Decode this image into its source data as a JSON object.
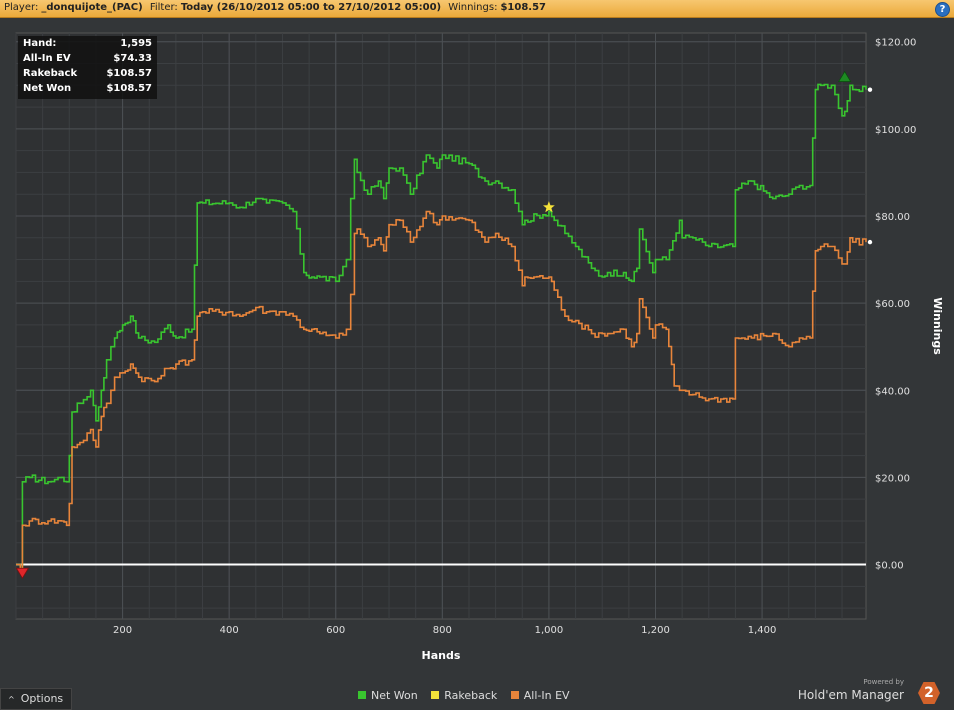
{
  "header": {
    "player_label": "Player:",
    "player_value": "_donquijote_(PAC)",
    "filter_label": "Filter:",
    "filter_value": "Today (26/10/2012 05:00 to 27/10/2012 05:00)",
    "winnings_label": "Winnings:",
    "winnings_value": "$108.57",
    "help_icon": "question-icon",
    "help_glyph": "?"
  },
  "stats_box": [
    {
      "label": "Hand:",
      "value": "1,595"
    },
    {
      "label": "All-In EV",
      "value": "$74.33"
    },
    {
      "label": "Rakeback",
      "value": "$108.57"
    },
    {
      "label": "Net Won",
      "value": "$108.57"
    }
  ],
  "options": {
    "label": "Options",
    "icon": "caret-up-icon",
    "glyph": "^"
  },
  "legend": [
    {
      "label": "Net Won",
      "color": "#39c52f"
    },
    {
      "label": "Rakeback",
      "color": "#f2e33a"
    },
    {
      "label": "All-In EV",
      "color": "#e8853b"
    }
  ],
  "branding": {
    "powered_by": "Powered by",
    "name": "Hold'em Manager",
    "logo_text": "2"
  },
  "chart_data": {
    "type": "line",
    "xlabel": "Hands",
    "ylabel": "Winnings",
    "xlim": [
      0,
      1595
    ],
    "ylim": [
      -12.5,
      122
    ],
    "x_ticks": [
      200,
      400,
      600,
      800,
      1000,
      1200,
      1400
    ],
    "x_tick_labels": [
      "200",
      "400",
      "600",
      "800",
      "1,000",
      "1,200",
      "1,400"
    ],
    "y_ticks": [
      0,
      20,
      40,
      60,
      80,
      100,
      120
    ],
    "y_tick_labels": [
      "$0.00",
      "$20.00",
      "$40.00",
      "$60.00",
      "$80.00",
      "$100.00",
      "$120.00"
    ],
    "grid": true,
    "legend_position": "bottom",
    "baseline": 0,
    "series": [
      {
        "name": "Net Won",
        "color": "#39c52f",
        "x": [
          0,
          8,
          12,
          25,
          60,
          85,
          95,
          100,
          105,
          120,
          140,
          150,
          160,
          170,
          178,
          185,
          200,
          215,
          230,
          260,
          285,
          300,
          330,
          340,
          350,
          400,
          420,
          450,
          470,
          500,
          520,
          540,
          555,
          570,
          600,
          620,
          628,
          635,
          640,
          660,
          680,
          690,
          700,
          720,
          740,
          770,
          790,
          800,
          850,
          880,
          900,
          930,
          950,
          955,
          1000,
          1010,
          1030,
          1050,
          1080,
          1100,
          1110,
          1140,
          1155,
          1165,
          1170,
          1195,
          1200,
          1220,
          1245,
          1250,
          1270,
          1300,
          1345,
          1350,
          1380,
          1420,
          1450,
          1470,
          1490,
          1500,
          1510,
          1530,
          1550,
          1555,
          1565,
          1570,
          1595
        ],
        "y": [
          0,
          -1,
          19,
          20,
          19,
          20,
          19,
          25,
          35,
          37,
          40,
          33,
          40,
          47,
          50,
          52,
          55,
          57,
          52,
          51,
          55,
          52,
          54,
          83,
          83,
          83,
          82,
          84,
          83,
          83,
          81,
          67,
          66,
          66,
          65,
          70,
          84,
          93,
          90,
          85,
          88,
          84,
          91,
          91,
          85,
          94,
          91,
          94,
          92,
          88,
          88,
          86,
          78,
          79,
          81,
          79,
          76,
          73,
          68,
          66,
          67,
          67,
          65,
          68,
          77,
          67,
          70,
          70,
          79,
          75,
          75,
          73,
          73,
          86,
          88,
          84,
          85,
          87,
          87,
          109,
          110,
          110,
          103,
          104,
          110,
          109,
          109
        ]
      },
      {
        "name": "All-In EV",
        "color": "#e8853b",
        "x": [
          0,
          8,
          12,
          25,
          60,
          85,
          95,
          100,
          105,
          120,
          140,
          150,
          160,
          170,
          178,
          185,
          200,
          215,
          230,
          260,
          285,
          300,
          330,
          340,
          350,
          400,
          420,
          450,
          470,
          500,
          520,
          540,
          555,
          570,
          600,
          620,
          628,
          635,
          640,
          660,
          680,
          690,
          700,
          720,
          740,
          770,
          790,
          800,
          850,
          880,
          900,
          930,
          950,
          955,
          1000,
          1010,
          1030,
          1050,
          1080,
          1100,
          1110,
          1140,
          1155,
          1165,
          1170,
          1195,
          1200,
          1220,
          1235,
          1245,
          1250,
          1270,
          1300,
          1345,
          1350,
          1380,
          1420,
          1450,
          1470,
          1490,
          1500,
          1510,
          1530,
          1550,
          1555,
          1565,
          1570,
          1595
        ],
        "y": [
          0,
          -1,
          9,
          10,
          10,
          10,
          9,
          14,
          27,
          28,
          31,
          27,
          34,
          37,
          40,
          43,
          44,
          46,
          43,
          42,
          45,
          46,
          47,
          57,
          58,
          58,
          57,
          59,
          58,
          58,
          57,
          54,
          54,
          53,
          52,
          54,
          62,
          76,
          77,
          73,
          75,
          72,
          78,
          79,
          74,
          81,
          78,
          80,
          79,
          74,
          76,
          73,
          64,
          66,
          66,
          63,
          57,
          56,
          53,
          53,
          53,
          54,
          50,
          53,
          61,
          52,
          55,
          54,
          41,
          40,
          40,
          39,
          38,
          38,
          52,
          52,
          53,
          50,
          52,
          52,
          72,
          73,
          73,
          69,
          69,
          75,
          74,
          74
        ]
      }
    ],
    "annotations": [
      {
        "type": "max-star",
        "series": "Net Won",
        "x": 1000,
        "y": 82,
        "color": "#f5e23a"
      },
      {
        "type": "start-down-triangle",
        "x": 12,
        "y": -2,
        "color": "#e0262a"
      },
      {
        "type": "end-up-triangle",
        "x": 1555,
        "y": 112,
        "color": "#1d8a22"
      }
    ]
  }
}
